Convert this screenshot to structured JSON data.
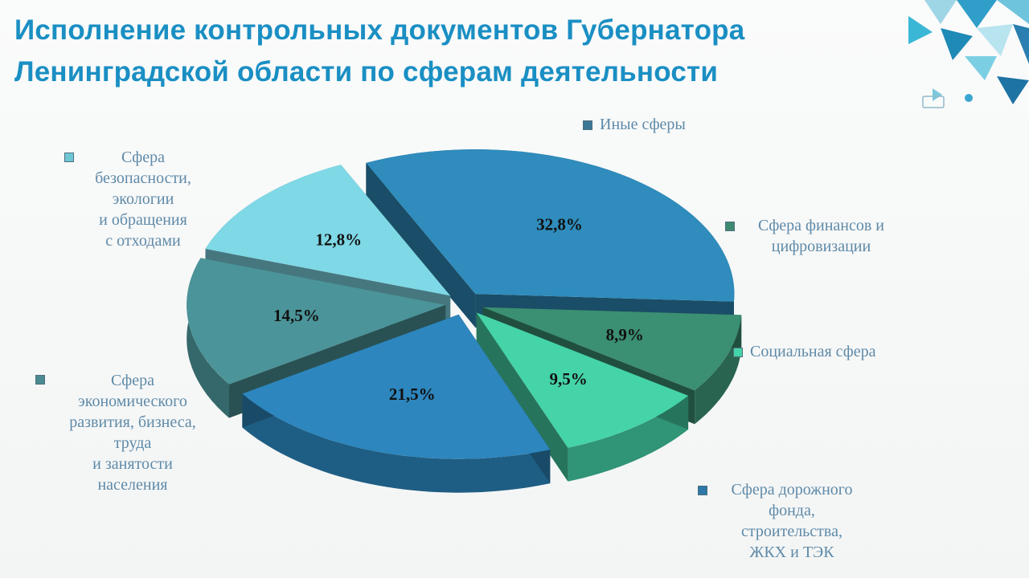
{
  "slide": {
    "title_line1": "Исполнение контрольных документов Губернатора",
    "title_line2": "Ленинградской области по сферам деятельности"
  },
  "colors": {
    "title": "#1a8fc3",
    "legend_text": "#5f8aa8"
  },
  "chart_data": {
    "type": "pie",
    "style": "3d-exploded",
    "title": "",
    "value_unit": "%",
    "slices": [
      {
        "label": "Иные сферы",
        "value": 32.8,
        "value_label": "32,8%",
        "color": "#2f8cbc",
        "label_lines": [
          "Иные сферы"
        ]
      },
      {
        "label": "Сфера финансов и цифровизации",
        "value": 8.9,
        "value_label": "8,9%",
        "color": "#3b8f73",
        "label_lines": [
          "Сфера финансов и",
          "цифровизации"
        ]
      },
      {
        "label": "Социальная сфера",
        "value": 9.5,
        "value_label": "9,5%",
        "color": "#45d3a8",
        "label_lines": [
          "Социальная сфера"
        ]
      },
      {
        "label": "Сфера дорожного фонда, строительства, ЖКХ и ТЭК",
        "value": 21.5,
        "value_label": "21,5%",
        "color": "#2d86bd",
        "label_lines": [
          "Сфера дорожного",
          "фонда,",
          "строительства,",
          "ЖКХ и ТЭК"
        ]
      },
      {
        "label": "Сфера экономического развития, бизнеса, труда и занятости населения",
        "value": 14.5,
        "value_label": "14,5%",
        "color": "#4b9499",
        "label_lines": [
          "Сфера",
          "экономического",
          "развития, бизнеса,",
          "труда",
          "и занятости",
          "населения"
        ]
      },
      {
        "label": "Сфера безопасности, экологии и обращения с отходами",
        "value": 12.8,
        "value_label": "12,8%",
        "color": "#7fd8e6",
        "label_lines": [
          "Сфера",
          "безопасности,",
          "экологии",
          "и обращения",
          "с отходами"
        ]
      }
    ]
  }
}
